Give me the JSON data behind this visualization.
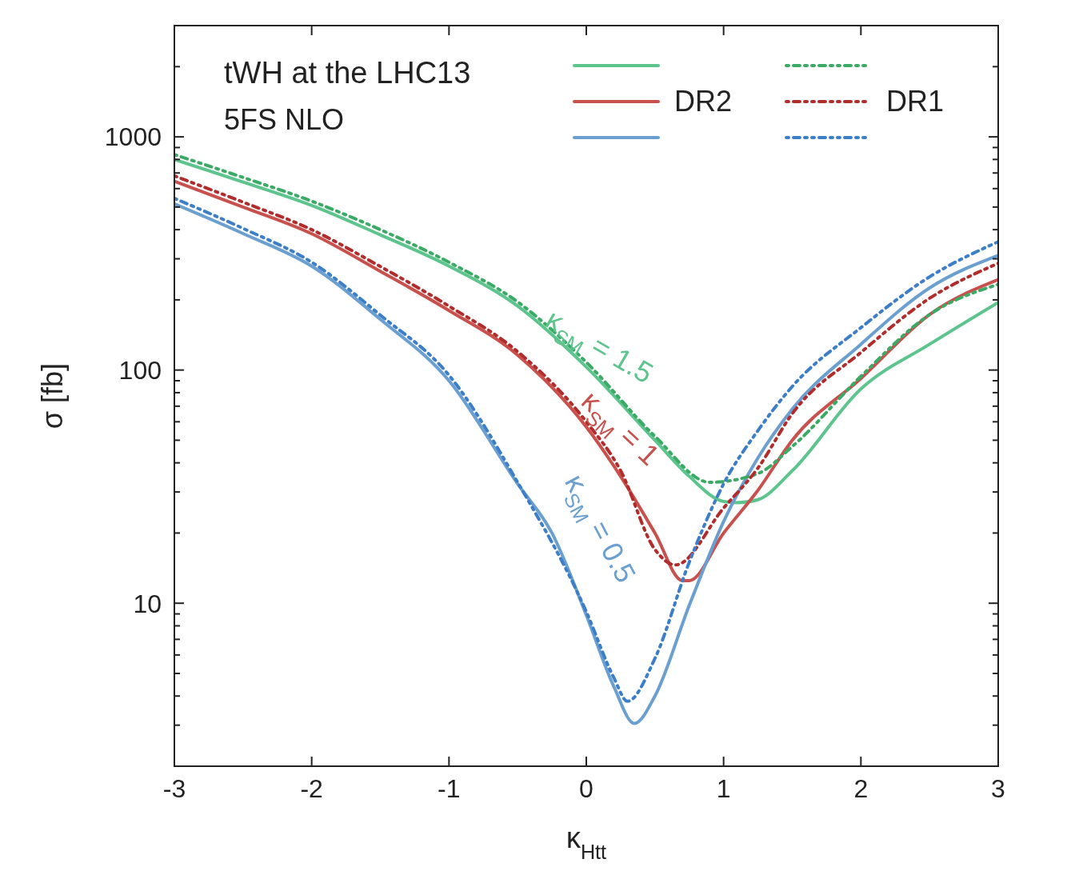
{
  "chart_data": {
    "type": "line",
    "title": "tWH at the LHC13",
    "subtitle": "5FS NLO",
    "xlabel": "κ$_{Htt}$",
    "ylabel": "σ [fb]",
    "log": "y",
    "legend": "top right",
    "marker": "none",
    "xlim": [
      -3,
      3
    ],
    "xticks": [
      -3,
      -2,
      -1,
      0,
      1,
      2,
      3
    ],
    "ylim": [
      2,
      3000
    ],
    "yticks": [
      {
        "value": 2,
        "label": null
      },
      {
        "value": 3,
        "label": null
      },
      {
        "value": 4,
        "label": null
      },
      {
        "value": 5,
        "label": null
      },
      {
        "value": 6,
        "label": null
      },
      {
        "value": 7,
        "label": null
      },
      {
        "value": 8,
        "label": null
      },
      {
        "value": 9,
        "label": null
      },
      10,
      {
        "value": 20,
        "label": null
      },
      {
        "value": 30,
        "label": null
      },
      {
        "value": 40,
        "label": null
      },
      {
        "value": 50,
        "label": null
      },
      {
        "value": 60,
        "label": null
      },
      {
        "value": 70,
        "label": null
      },
      {
        "value": 80,
        "label": null
      },
      {
        "value": 90,
        "label": null
      },
      100,
      {
        "value": 200,
        "label": null
      },
      {
        "value": 300,
        "label": null
      },
      {
        "value": 400,
        "label": null
      },
      {
        "value": 500,
        "label": null
      },
      {
        "value": 600,
        "label": null
      },
      {
        "value": 700,
        "label": null
      },
      {
        "value": 800,
        "label": null
      },
      {
        "value": 900,
        "label": null
      },
      1000,
      {
        "value": 2000,
        "label": null
      },
      {
        "value": 3000,
        "label": null
      }
    ],
    "series": [
      {
        "color": "#5cc48c",
        "line_style": "solid",
        "x": [
          -3,
          -2.5,
          -2,
          -1.5,
          -1,
          -0.5,
          0,
          0.5,
          0.75,
          1,
          1.1,
          1.25,
          1.5,
          2,
          2.5,
          3
        ],
        "values": [
          800,
          640,
          508,
          380,
          279,
          188,
          103,
          50,
          35,
          27.3,
          27,
          27.8,
          37,
          83,
          129,
          195
        ]
      },
      {
        "name": "DR2",
        "color": "#c8514e",
        "line_style": "solid",
        "x": [
          -3,
          -2.5,
          -2,
          -1.5,
          -1,
          -0.5,
          0,
          0.25,
          0.5,
          0.7,
          0.75,
          1,
          1.25,
          1.5,
          2,
          2.5,
          3
        ],
        "values": [
          645,
          500,
          384,
          265,
          180,
          116,
          57,
          35,
          20,
          12.5,
          12.5,
          20,
          30.5,
          50,
          92,
          173,
          244
        ]
      },
      {
        "color": "#6a9fd0",
        "line_style": "solid",
        "x": [
          -3,
          -2.5,
          -2,
          -1.5,
          -1,
          -0.5,
          -0.25,
          0,
          0.2,
          0.35,
          0.5,
          0.75,
          1,
          1.25,
          1.5,
          2,
          2.5,
          3
        ],
        "values": [
          516,
          385,
          279,
          165,
          90,
          32.5,
          20,
          8.9,
          4.4,
          3.05,
          4,
          9.8,
          22.4,
          42,
          68,
          129,
          225,
          310
        ]
      },
      {
        "color": "#3aaa64",
        "line_style": "dotted",
        "x": [
          -3,
          -2.5,
          -2,
          -1.5,
          -1,
          -0.5,
          0,
          0.5,
          0.9,
          1.25,
          1.5,
          2,
          2.5,
          3
        ],
        "values": [
          839,
          670,
          530,
          400,
          290,
          196,
          108,
          52,
          33,
          36,
          47,
          94,
          173,
          233
        ]
      },
      {
        "name": "DR1",
        "color": "#b22c2c",
        "line_style": "dotted",
        "x": [
          -3,
          -2.5,
          -2,
          -1.5,
          -1,
          -0.5,
          0,
          0.25,
          0.5,
          0.65,
          1,
          1.25,
          1.5,
          2,
          2.5,
          3
        ],
        "values": [
          680,
          525,
          400,
          278,
          188,
          120,
          60,
          37,
          17,
          14.6,
          25.6,
          38,
          65,
          119,
          203,
          287
        ]
      },
      {
        "color": "#3c7fc8",
        "line_style": "dotted",
        "x": [
          -3,
          -2.5,
          -2,
          -1.5,
          -1,
          -0.5,
          0,
          0.2,
          0.3,
          0.5,
          0.75,
          1,
          1.25,
          1.5,
          2,
          2.5,
          3
        ],
        "values": [
          545,
          405,
          290,
          172,
          95,
          33,
          9.2,
          4.8,
          3.8,
          5.8,
          15,
          32.5,
          55,
          85,
          152,
          251,
          355
        ]
      }
    ],
    "annotations": [
      "κ$_{SM}$ = 1.5",
      "κ$_{SM}$ = 1",
      "κ$_{SM}$ = 0.5"
    ]
  }
}
